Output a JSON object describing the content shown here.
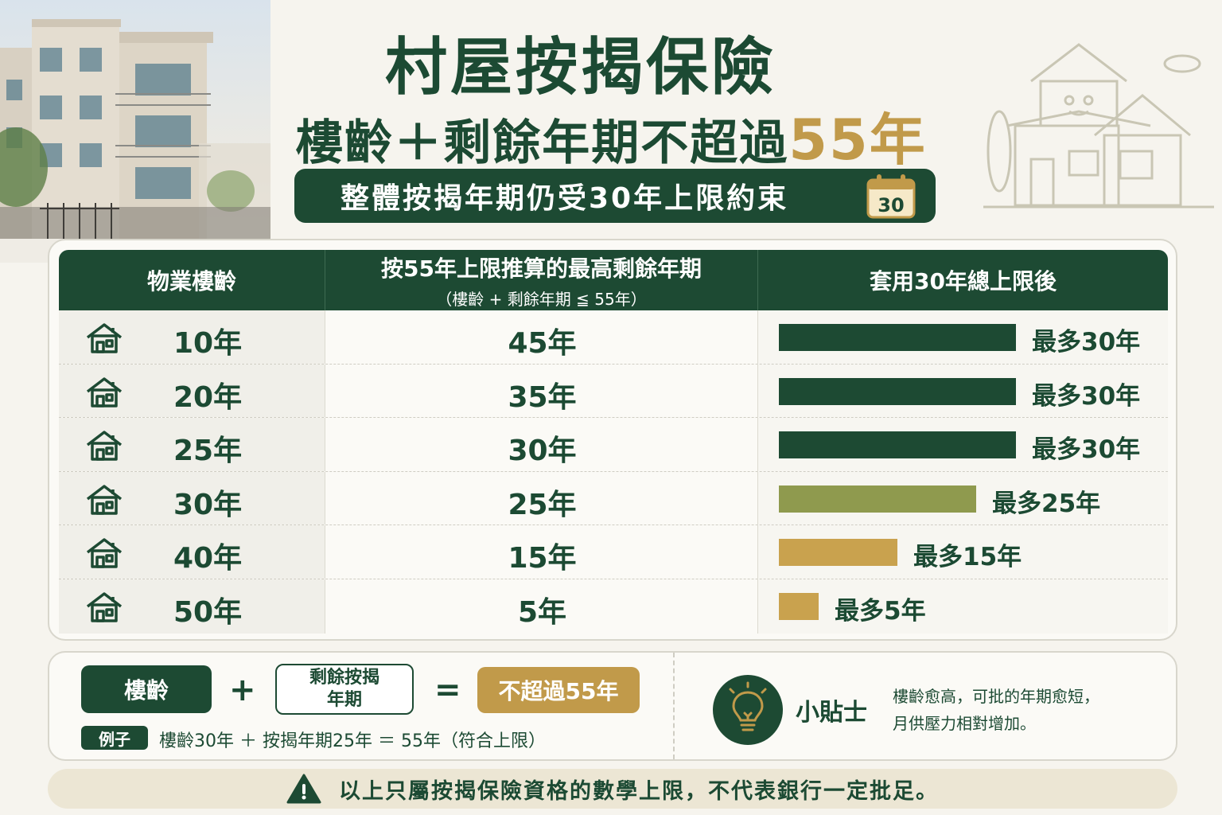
{
  "title": "村屋按揭保險",
  "subtitle": {
    "prefix": "樓齡＋剩餘年期不超過",
    "highlight": "55年"
  },
  "banner": {
    "text": "整體按揭年期仍受30年上限約束",
    "calendar_icon": "calendar-icon",
    "calendar_number": "30"
  },
  "table": {
    "headers": {
      "age": "物業樓齡",
      "remaining": "按55年上限推算的最高剩餘年期",
      "remaining_sub": "（樓齡 + 剩餘年期 ≦ 55年）",
      "capped": "套用30年總上限後"
    },
    "rows": [
      {
        "age": "10年",
        "remaining": "45年",
        "cap_label": "最多30年",
        "cap_years": 30,
        "tier": "dark"
      },
      {
        "age": "20年",
        "remaining": "35年",
        "cap_label": "最多30年",
        "cap_years": 30,
        "tier": "dark"
      },
      {
        "age": "25年",
        "remaining": "30年",
        "cap_label": "最多30年",
        "cap_years": 30,
        "tier": "dark"
      },
      {
        "age": "30年",
        "remaining": "25年",
        "cap_label": "最多25年",
        "cap_years": 25,
        "tier": "olive"
      },
      {
        "age": "40年",
        "remaining": "15年",
        "cap_label": "最多15年",
        "cap_years": 15,
        "tier": "gold"
      },
      {
        "age": "50年",
        "remaining": "5年",
        "cap_label": "最多5年",
        "cap_years": 5,
        "tier": "gold"
      }
    ],
    "row_icon": "house-icon"
  },
  "colors": {
    "dark": "#1d4a33",
    "olive": "#8f9a4e",
    "gold": "#c9a24e",
    "accent": "#c19a4a"
  },
  "formula": {
    "age": "樓齡",
    "plus": "+",
    "remaining_line1": "剩餘按揭",
    "remaining_line2": "年期",
    "equals": "=",
    "limit": "不超過55年",
    "example_tag": "例子",
    "example_text": "樓齡30年 ＋ 按揭年期25年 ＝ 55年（符合上限）"
  },
  "tip": {
    "icon": "lightbulb-icon",
    "title": "小貼士",
    "line1": "樓齡愈高，可批的年期愈短，",
    "line2": "月供壓力相對增加。"
  },
  "footer": {
    "icon": "warning-icon",
    "text": "以上只屬按揭保險資格的數學上限，不代表銀行一定批足。"
  }
}
